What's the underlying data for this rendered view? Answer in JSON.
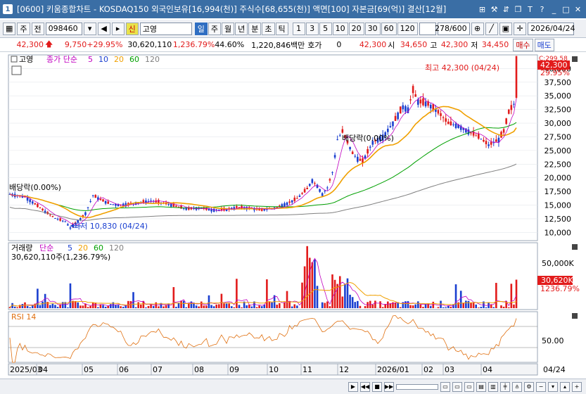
{
  "window": {
    "number": "1",
    "title": "[0600] 키움종합차트 - KOSDAQ150 외국인보유[16,994(천)] 주식수[68,655(천)] 액면[100] 자본금[69(억)] 결산[12월]"
  },
  "toolbar": {
    "market_label": "주",
    "prev_label": "전",
    "code": "098460",
    "new_badge": "신",
    "name": "고영",
    "periods": [
      "일",
      "주",
      "월",
      "년",
      "분",
      "초",
      "틱"
    ],
    "intervals": [
      "1",
      "3",
      "5",
      "10",
      "20",
      "30",
      "60",
      "120"
    ],
    "count": "278/600",
    "date": "2026/04/24"
  },
  "quote": {
    "price": "42,300",
    "change": "9,750",
    "change_pct": "+29.95%",
    "volume": "30,620,110",
    "volume_ratio": "1,236.79%",
    "turnover": "44.60%",
    "amount": "1,220,846백만",
    "hoga_label": "호가",
    "hoga_value": "0",
    "bid": "42,300",
    "open_label": "시",
    "open": "34,650",
    "high_label": "고",
    "high": "42,300",
    "low_label": "저",
    "low": "34,450",
    "buy_label": "매수",
    "sell_label": "매도"
  },
  "price_panel": {
    "legend_name": "고영",
    "legend_ma": "종가 단순",
    "ma_periods": [
      "5",
      "10",
      "20",
      "60",
      "120"
    ],
    "ma_colors": [
      "#c000c0",
      "#1a3fd0",
      "#f0a000",
      "#00a000",
      "#808080"
    ],
    "dividend_label_1": "배당락(0.00%)",
    "dividend_label_2": "배당락(0.00%)",
    "high_note": "최고 42,300 (04/24)",
    "low_note": "최저 10,830 (04/24)",
    "current_tag": "42,300",
    "current_pct": "29.95%",
    "top_tag": "C:299.58"
  },
  "volume_panel": {
    "legend_name": "거래량",
    "legend_ma": "단순",
    "ma_periods": [
      "5",
      "20",
      "60",
      "120"
    ],
    "value_text": "30,620,110주(1,236.79%)",
    "tag_value": "30,620K",
    "tag_pct": "1236.79%",
    "axis_labels": [
      "50,000K",
      "30,620K"
    ]
  },
  "rsi_panel": {
    "legend": "RSI 14",
    "axis_label": "50.00"
  },
  "x_labels": [
    "2025/03",
    "04",
    "05",
    "06",
    "07",
    "08",
    "09",
    "10",
    "11",
    "12",
    "2026/01",
    "02",
    "03",
    "04"
  ],
  "x_right_label": "04/24",
  "colors": {
    "up": "#e21b1b",
    "down": "#1a3fd0",
    "accent": "#3a6ea5"
  },
  "chart_data": {
    "type": "line",
    "y_ticks": [
      10000,
      12500,
      15000,
      17500,
      20000,
      22500,
      25000,
      27500,
      30000,
      32500,
      35000,
      37500,
      40000
    ],
    "ylim": [
      8500,
      42500
    ],
    "price_path": [
      [
        0,
        17000
      ],
      [
        6,
        16500
      ],
      [
        10,
        15200
      ],
      [
        14,
        13800
      ],
      [
        18,
        12600
      ],
      [
        22,
        12000
      ],
      [
        24,
        10830
      ],
      [
        28,
        12500
      ],
      [
        30,
        13500
      ],
      [
        33,
        16800
      ],
      [
        36,
        16000
      ],
      [
        40,
        15200
      ],
      [
        44,
        15000
      ],
      [
        50,
        15400
      ],
      [
        56,
        15800
      ],
      [
        62,
        15300
      ],
      [
        66,
        14800
      ],
      [
        70,
        14300
      ],
      [
        76,
        14500
      ],
      [
        80,
        14100
      ],
      [
        86,
        14200
      ],
      [
        90,
        14600
      ],
      [
        96,
        14400
      ],
      [
        100,
        14100
      ],
      [
        106,
        14600
      ],
      [
        110,
        15300
      ],
      [
        114,
        16200
      ],
      [
        118,
        18000
      ],
      [
        120,
        19500
      ],
      [
        122,
        18500
      ],
      [
        124,
        17000
      ],
      [
        126,
        18200
      ],
      [
        128,
        21000
      ],
      [
        130,
        27000
      ],
      [
        132,
        28500
      ],
      [
        134,
        26500
      ],
      [
        136,
        24500
      ],
      [
        138,
        23500
      ],
      [
        140,
        23000
      ],
      [
        144,
        26500
      ],
      [
        148,
        27500
      ],
      [
        152,
        30000
      ],
      [
        156,
        33000
      ],
      [
        158,
        32500
      ],
      [
        160,
        36000
      ],
      [
        162,
        34000
      ],
      [
        166,
        33500
      ],
      [
        170,
        32000
      ],
      [
        174,
        30000
      ],
      [
        178,
        29500
      ],
      [
        182,
        28500
      ],
      [
        186,
        27500
      ],
      [
        190,
        26000
      ],
      [
        194,
        27000
      ],
      [
        196,
        28500
      ],
      [
        198,
        32000
      ],
      [
        200,
        33500
      ],
      [
        201,
        42300
      ]
    ],
    "volume_ratio_last": 1236.79,
    "rsi_ylim": [
      0,
      100
    ]
  }
}
